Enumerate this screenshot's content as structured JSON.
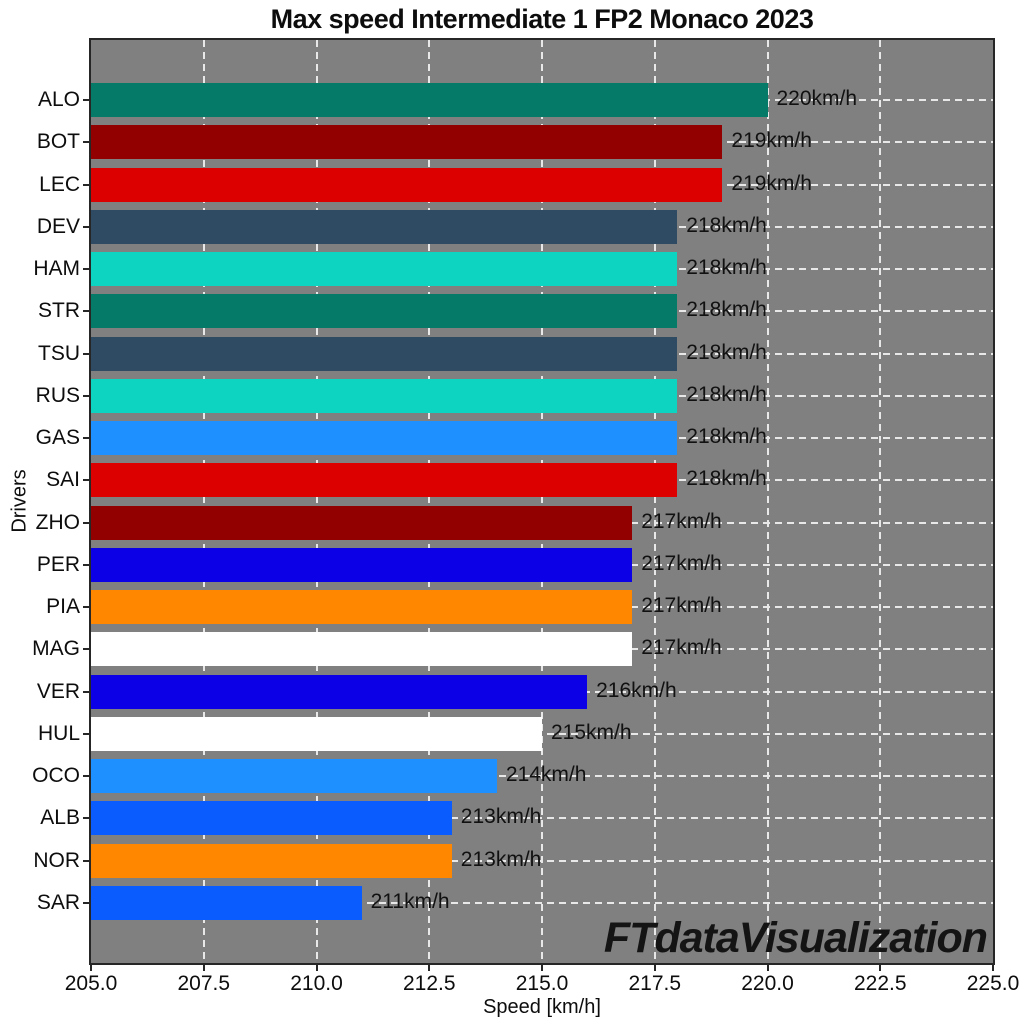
{
  "title": "Max speed Intermediate 1 FP2 Monaco 2023",
  "watermark": "FTdataVisualization",
  "chart_data": {
    "type": "bar",
    "orientation": "horizontal",
    "title": "Max speed Intermediate 1 FP2 Monaco 2023",
    "xlabel": "Speed [km/h]",
    "ylabel": "Drivers",
    "xlim": [
      205.0,
      225.0
    ],
    "xticks": {
      "values": [
        205.0,
        207.5,
        210.0,
        212.5,
        215.0,
        217.5,
        220.0,
        222.5,
        225.0
      ],
      "labels": [
        "205.0",
        "207.5",
        "210.0",
        "212.5",
        "215.0",
        "217.5",
        "220.0",
        "222.5",
        "225.0"
      ]
    },
    "grid": true,
    "legend": "none",
    "plot_background": "#808080",
    "gridline_color": "#e8e8e8",
    "categories": [
      "ALO",
      "BOT",
      "LEC",
      "DEV",
      "HAM",
      "STR",
      "TSU",
      "RUS",
      "GAS",
      "SAI",
      "ZHO",
      "PER",
      "PIA",
      "MAG",
      "VER",
      "HUL",
      "OCO",
      "ALB",
      "NOR",
      "SAR"
    ],
    "bars": [
      {
        "driver": "ALO",
        "speed": 220,
        "label": "220km/h",
        "color": "#067A68"
      },
      {
        "driver": "BOT",
        "speed": 219,
        "label": "219km/h",
        "color": "#930000"
      },
      {
        "driver": "LEC",
        "speed": 219,
        "label": "219km/h",
        "color": "#DC0000"
      },
      {
        "driver": "DEV",
        "speed": 218,
        "label": "218km/h",
        "color": "#2F4A63"
      },
      {
        "driver": "HAM",
        "speed": 218,
        "label": "218km/h",
        "color": "#0DD3C1"
      },
      {
        "driver": "STR",
        "speed": 218,
        "label": "218km/h",
        "color": "#067A68"
      },
      {
        "driver": "TSU",
        "speed": 218,
        "label": "218km/h",
        "color": "#2F4A63"
      },
      {
        "driver": "RUS",
        "speed": 218,
        "label": "218km/h",
        "color": "#0DD3C1"
      },
      {
        "driver": "GAS",
        "speed": 218,
        "label": "218km/h",
        "color": "#1E90FF"
      },
      {
        "driver": "SAI",
        "speed": 218,
        "label": "218km/h",
        "color": "#DC0000"
      },
      {
        "driver": "ZHO",
        "speed": 217,
        "label": "217km/h",
        "color": "#930000"
      },
      {
        "driver": "PER",
        "speed": 217,
        "label": "217km/h",
        "color": "#0B00E6"
      },
      {
        "driver": "PIA",
        "speed": 217,
        "label": "217km/h",
        "color": "#FF8700"
      },
      {
        "driver": "MAG",
        "speed": 217,
        "label": "217km/h",
        "color": "#FFFFFF"
      },
      {
        "driver": "VER",
        "speed": 216,
        "label": "216km/h",
        "color": "#0B00E6"
      },
      {
        "driver": "HUL",
        "speed": 215,
        "label": "215km/h",
        "color": "#FFFFFF"
      },
      {
        "driver": "OCO",
        "speed": 214,
        "label": "214km/h",
        "color": "#1E90FF"
      },
      {
        "driver": "ALB",
        "speed": 213,
        "label": "213km/h",
        "color": "#0B5CFF"
      },
      {
        "driver": "NOR",
        "speed": 213,
        "label": "213km/h",
        "color": "#FF8700"
      },
      {
        "driver": "SAR",
        "speed": 211,
        "label": "211km/h",
        "color": "#0B5CFF"
      }
    ]
  }
}
